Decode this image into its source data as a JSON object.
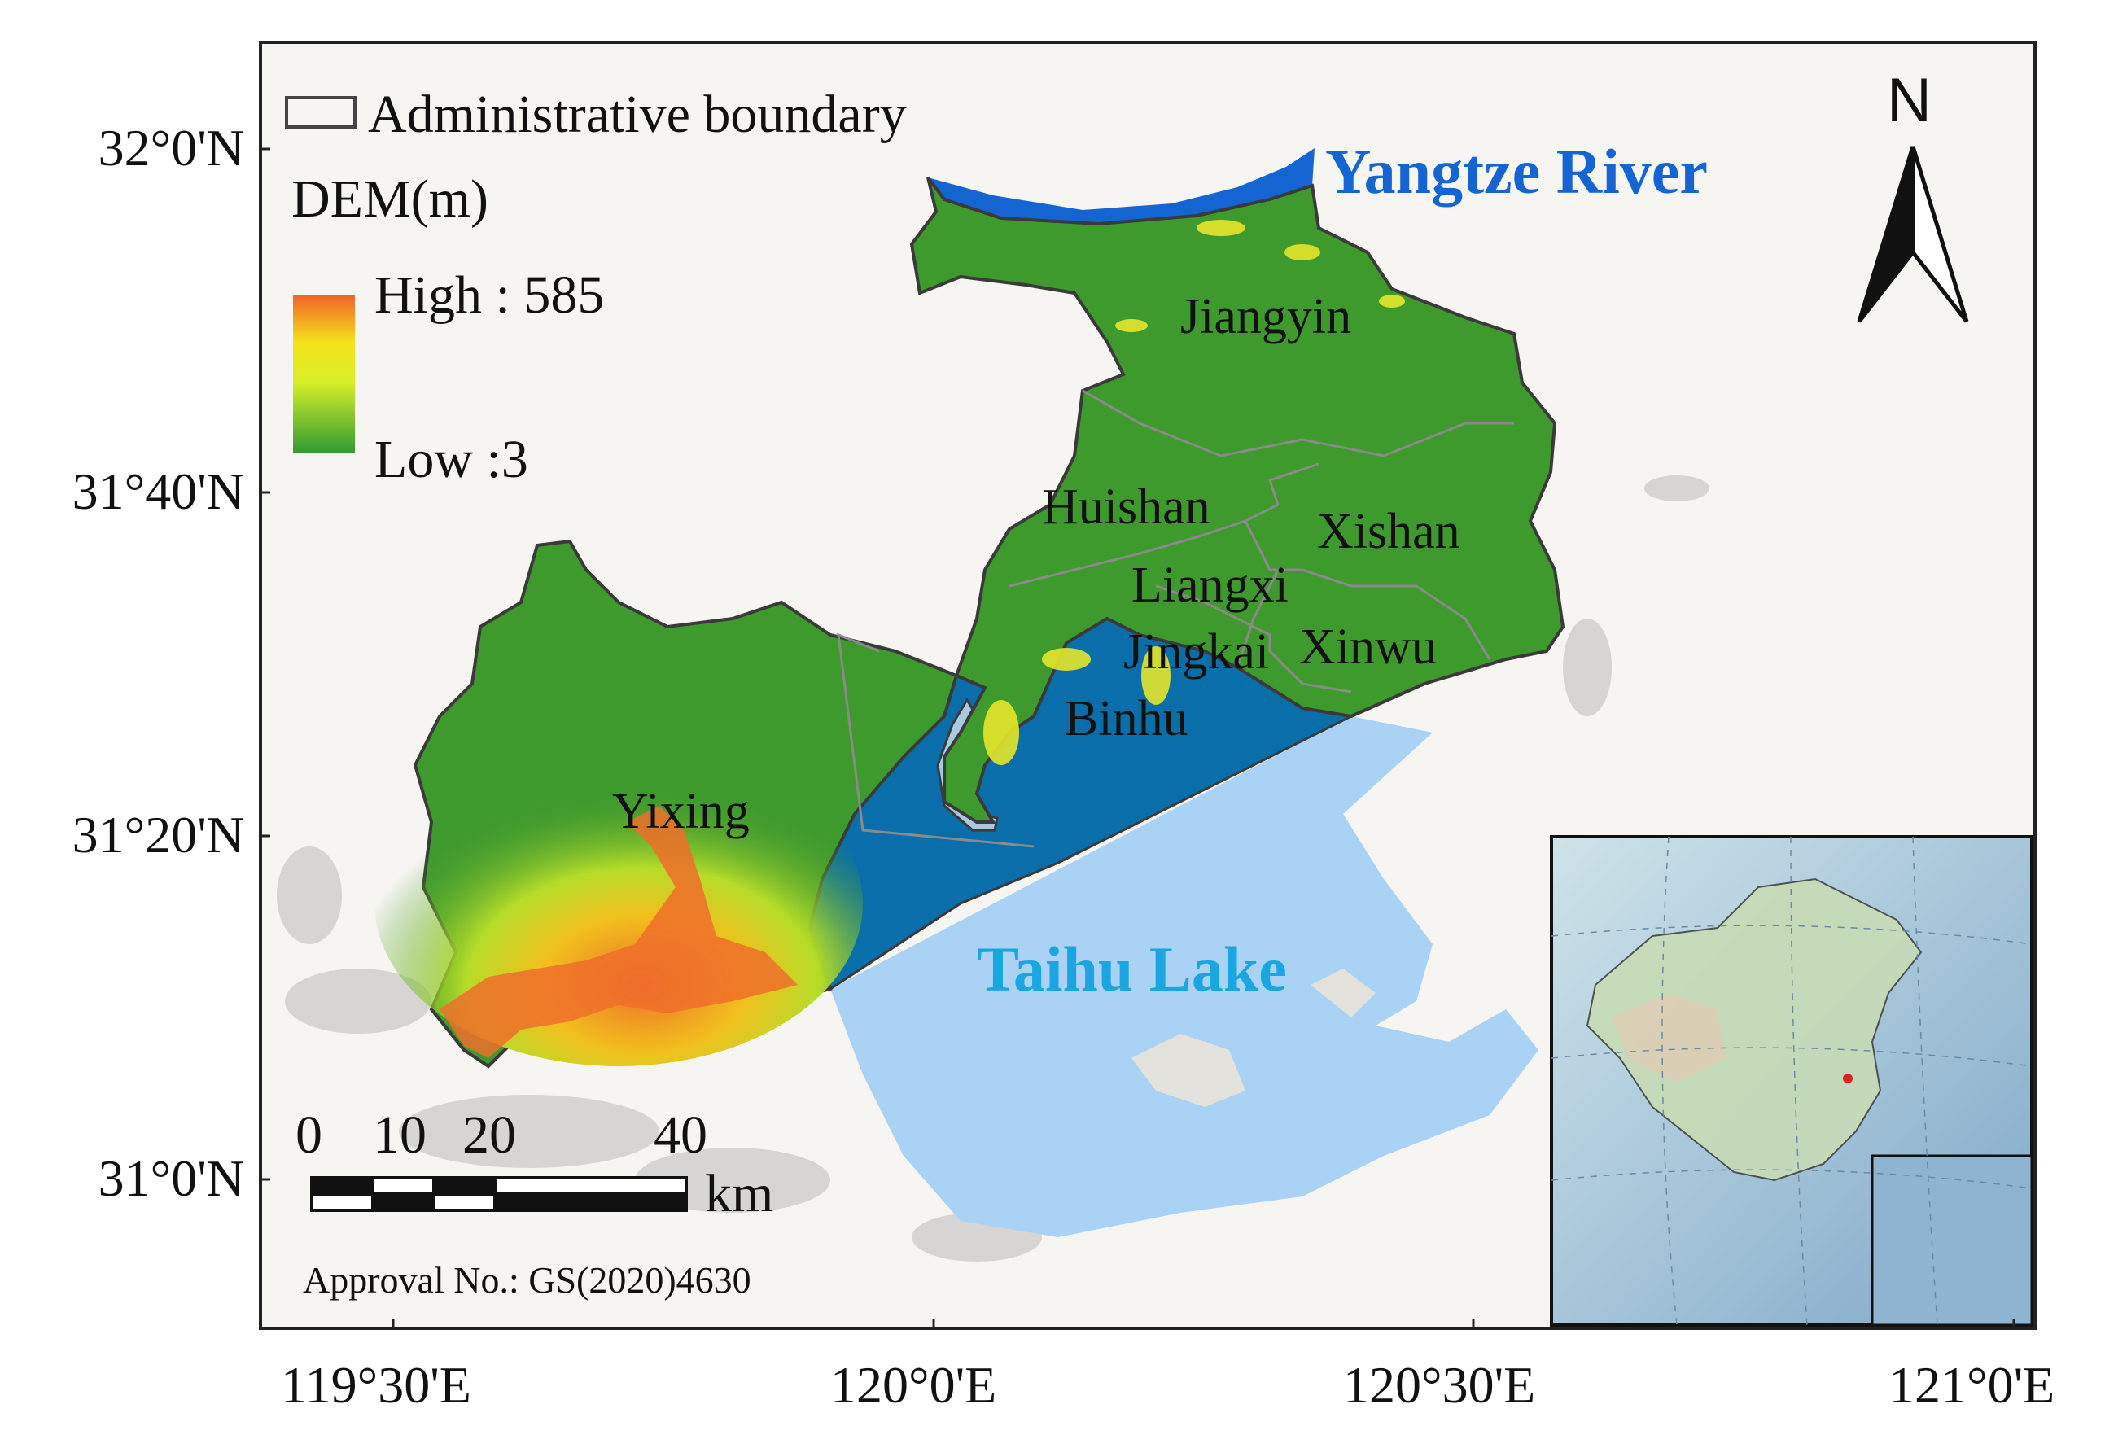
{
  "legend": {
    "boundary_label": "Administrative boundary",
    "dem_title": "DEM(m)",
    "high_label": "High : 585",
    "low_label": "Low :3"
  },
  "north_label": "N",
  "water_labels": {
    "river": "Yangtze River",
    "lake": "Taihu Lake"
  },
  "colors": {
    "river": "#1464d2",
    "lake": "#7dc6ee",
    "lake_inner": "#0a6eaa",
    "lake_outer": "#aad2f5",
    "land_low": "#3f9a2e",
    "land_high": "#f06a2a",
    "boundary": "#555555"
  },
  "districts": [
    {
      "id": "jiangyin",
      "name": "Jiangyin"
    },
    {
      "id": "huishan",
      "name": "Huishan"
    },
    {
      "id": "xishan",
      "name": "Xishan"
    },
    {
      "id": "liangxi",
      "name": "Liangxi"
    },
    {
      "id": "jingkai",
      "name": "Jingkai"
    },
    {
      "id": "xinwu",
      "name": "Xinwu"
    },
    {
      "id": "binhu",
      "name": "Binhu"
    },
    {
      "id": "yixing",
      "name": "Yixing"
    }
  ],
  "lat_ticks": [
    "32°0'N",
    "31°40'N",
    "31°20'N",
    "31°0'N"
  ],
  "lon_ticks": [
    "119°30'E",
    "120°0'E",
    "120°30'E",
    "121°0'E"
  ],
  "scale_bar": {
    "ticks": [
      "0",
      "10",
      "20",
      "40"
    ],
    "unit": "km"
  },
  "approval": "Approval No.: GS(2020)4630",
  "inset": {
    "description_icon": "china-locator-map"
  }
}
